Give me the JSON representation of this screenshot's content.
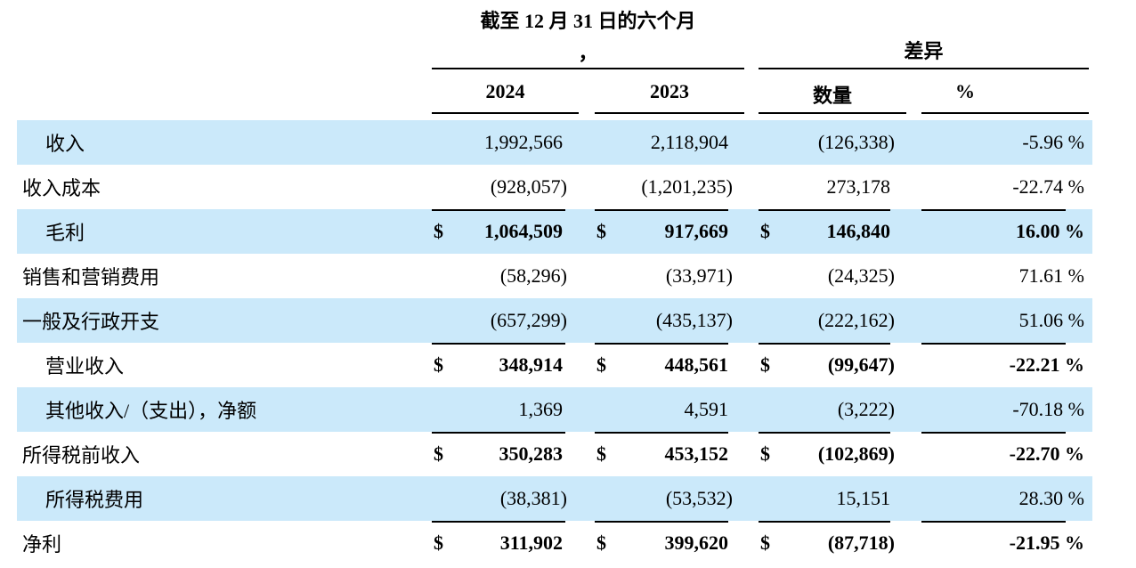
{
  "colors": {
    "row_shade": "#cbe9fa",
    "rule": "#000000",
    "text": "#000000",
    "background": "#ffffff"
  },
  "currency_symbol": "$",
  "header": {
    "period_title": "截至 12 月 31 日的六个月",
    "period_title_line2": "，",
    "diff_title": "差异",
    "col_2024": "2024",
    "col_2023": "2023",
    "col_amount": "数量",
    "col_percent": "%"
  },
  "rows": [
    {
      "label": "收入",
      "indent": true,
      "shaded": true,
      "total": false,
      "rule_above": false,
      "dollar": false,
      "v2024": "1,992,566",
      "v2023": "2,118,904",
      "diff_amount": "(126,338)",
      "diff_pct": "-5.96 %"
    },
    {
      "label": "收入成本",
      "indent": false,
      "shaded": false,
      "total": false,
      "rule_above": false,
      "dollar": false,
      "v2024": "(928,057)",
      "v2023": "(1,201,235)",
      "diff_amount": "273,178",
      "diff_pct": "-22.74 %"
    },
    {
      "label": "毛利",
      "indent": true,
      "shaded": true,
      "total": true,
      "rule_above": true,
      "dollar": true,
      "v2024": "1,064,509",
      "v2023": "917,669",
      "diff_amount": "146,840",
      "diff_pct": "16.00 %"
    },
    {
      "label": "销售和营销费用",
      "indent": false,
      "shaded": false,
      "total": false,
      "rule_above": false,
      "dollar": false,
      "v2024": "(58,296)",
      "v2023": "(33,971)",
      "diff_amount": "(24,325)",
      "diff_pct": "71.61 %"
    },
    {
      "label": "一般及行政开支",
      "indent": false,
      "shaded": true,
      "total": false,
      "rule_above": false,
      "dollar": false,
      "v2024": "(657,299)",
      "v2023": "(435,137)",
      "diff_amount": "(222,162)",
      "diff_pct": "51.06 %"
    },
    {
      "label": "营业收入",
      "indent": true,
      "shaded": false,
      "total": true,
      "rule_above": true,
      "dollar": true,
      "v2024": "348,914",
      "v2023": "448,561",
      "diff_amount": "(99,647)",
      "diff_pct": "-22.21 %"
    },
    {
      "label": "其他收入/（支出），净额",
      "indent": true,
      "shaded": true,
      "total": false,
      "rule_above": false,
      "dollar": false,
      "v2024": "1,369",
      "v2023": "4,591",
      "diff_amount": "(3,222)",
      "diff_pct": "-70.18 %"
    },
    {
      "label": "所得税前收入",
      "indent": false,
      "shaded": false,
      "total": true,
      "rule_above": true,
      "dollar": true,
      "v2024": "350,283",
      "v2023": "453,152",
      "diff_amount": "(102,869)",
      "diff_pct": "-22.70 %"
    },
    {
      "label": "所得税费用",
      "indent": true,
      "shaded": true,
      "total": false,
      "rule_above": false,
      "dollar": false,
      "v2024": "(38,381)",
      "v2023": "(53,532)",
      "diff_amount": "15,151",
      "diff_pct": "28.30 %"
    },
    {
      "label": "净利",
      "indent": false,
      "shaded": false,
      "total": true,
      "rule_above": true,
      "dollar": true,
      "v2024": "311,902",
      "v2023": "399,620",
      "diff_amount": "(87,718)",
      "diff_pct": "-21.95 %"
    }
  ]
}
